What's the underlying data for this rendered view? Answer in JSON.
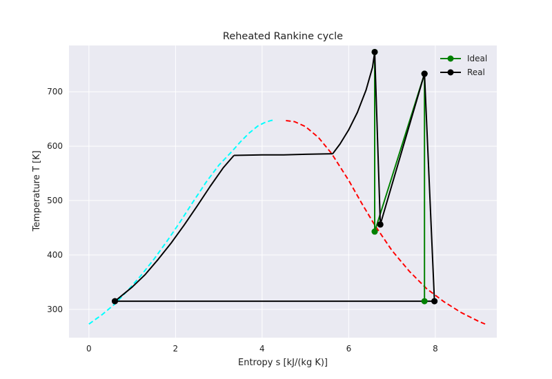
{
  "chart_data": {
    "type": "line",
    "title": "Reheated Rankine cycle",
    "xlabel": "Entropy s [kJ/(kg K)]",
    "ylabel": "Temperature T [K]",
    "xlim": [
      -0.46,
      9.42
    ],
    "ylim": [
      248,
      785
    ],
    "xticks": [
      0,
      2,
      4,
      6,
      8
    ],
    "yticks": [
      300,
      400,
      500,
      600,
      700
    ],
    "grid": true,
    "legend_position": "top-right",
    "colors": {
      "background": "#eaeaf2",
      "grid": "#ffffff",
      "ideal": "#008000",
      "real": "#000000",
      "dome_liquid": "#00ffff",
      "dome_vapor": "#ff0000"
    },
    "dome": {
      "liquid": {
        "x": [
          0.0,
          0.3,
          0.6,
          0.9,
          1.2,
          1.5,
          1.8,
          2.1,
          2.4,
          2.7,
          3.0,
          3.3,
          3.5,
          3.7,
          3.9,
          4.05,
          4.2,
          4.28
        ],
        "y": [
          273,
          290,
          310,
          335,
          362,
          392,
          425,
          460,
          497,
          533,
          565,
          590,
          608,
          624,
          637,
          643,
          647,
          648
        ]
      },
      "vapor": {
        "x": [
          4.55,
          4.75,
          5.0,
          5.3,
          5.6,
          6.0,
          6.3,
          6.6,
          7.0,
          7.4,
          7.8,
          8.2,
          8.6,
          9.0,
          9.15
        ],
        "y": [
          647,
          645,
          636,
          616,
          587,
          537,
          495,
          455,
          408,
          370,
          338,
          314,
          294,
          278,
          273
        ]
      }
    },
    "series": [
      {
        "name": "Ideal",
        "segments": [
          {
            "x": [
              6.6,
              6.6
            ],
            "y": [
              773,
              443
            ],
            "marker": true
          },
          {
            "x": [
              6.6,
              7.75
            ],
            "y": [
              443,
              733
            ],
            "marker": true
          },
          {
            "x": [
              7.75,
              7.75
            ],
            "y": [
              733,
              315
            ],
            "marker": true
          }
        ]
      },
      {
        "name": "Real",
        "segments": [
          {
            "x": [
              0.6,
              0.8,
              1.0,
              1.3,
              1.6,
              1.9,
              2.2,
              2.5,
              2.8,
              3.1,
              3.35
            ],
            "y": [
              315,
              328,
              341,
              364,
              392,
              422,
              455,
              490,
              526,
              560,
              583
            ],
            "marker": false
          },
          {
            "x": [
              3.35,
              4.0,
              4.5,
              5.0,
              5.63
            ],
            "y": [
              583,
              584,
              584,
              585,
              586
            ],
            "marker": false
          },
          {
            "x": [
              5.63,
              5.8,
              6.0,
              6.2,
              6.4,
              6.55,
              6.6
            ],
            "y": [
              586,
              604,
              630,
              662,
              703,
              745,
              773
            ],
            "marker": false
          },
          {
            "x": [
              6.6,
              6.73
            ],
            "y": [
              773,
              456
            ],
            "marker": true
          },
          {
            "x": [
              6.73,
              7.75
            ],
            "y": [
              456,
              733
            ],
            "marker": true
          },
          {
            "x": [
              7.75,
              7.98
            ],
            "y": [
              733,
              315
            ],
            "marker": true
          },
          {
            "x": [
              7.98,
              0.6
            ],
            "y": [
              315,
              315
            ],
            "marker": true
          },
          {
            "x": [
              0.6
            ],
            "y": [
              315
            ],
            "marker": true
          }
        ]
      }
    ]
  }
}
